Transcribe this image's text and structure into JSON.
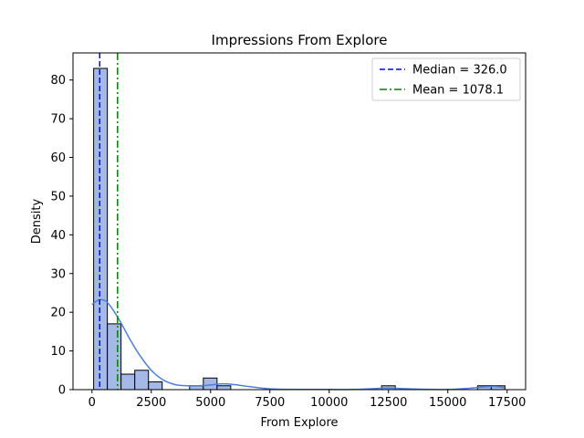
{
  "chart_data": {
    "type": "bar",
    "title": "Impressions From Explore",
    "xlabel": "From Explore",
    "ylabel": "Density",
    "xlim": [
      -800,
      18280
    ],
    "ylim": [
      0,
      87
    ],
    "x_ticks": [
      0,
      2500,
      5000,
      7500,
      10000,
      12500,
      15000,
      17500
    ],
    "x_tick_labels": [
      "0",
      "2500",
      "5000",
      "7500",
      "10000",
      "12500",
      "15000",
      "17500"
    ],
    "y_ticks": [
      0,
      10,
      20,
      30,
      40,
      50,
      60,
      70,
      80
    ],
    "y_tick_labels": [
      "0",
      "10",
      "20",
      "30",
      "40",
      "50",
      "60",
      "70",
      "80"
    ],
    "grid": false,
    "bin_start": 70,
    "bin_width": 578,
    "bin_counts": [
      83,
      17,
      4,
      5,
      2,
      0,
      0,
      1,
      3,
      1,
      0,
      0,
      0,
      0,
      0,
      0,
      0,
      0,
      0,
      0,
      0,
      1,
      0,
      0,
      0,
      0,
      0,
      0,
      1,
      1
    ],
    "kde": {
      "x": [
        0,
        300,
        600,
        900,
        1200,
        1600,
        2000,
        2500,
        3000,
        3500,
        4000,
        4500,
        5000,
        5500,
        6000,
        6500,
        7000,
        7500,
        8000,
        9000,
        10000,
        11000,
        12000,
        12500,
        13000,
        14000,
        15000,
        16000,
        16500,
        17000,
        17400
      ],
      "y": [
        22,
        23.2,
        22.8,
        20.5,
        17.5,
        13,
        9,
        5,
        2.5,
        1.3,
        1,
        1,
        1.2,
        1.5,
        1.3,
        0.9,
        0.5,
        0.2,
        0.1,
        0.05,
        0.05,
        0.05,
        0.3,
        0.4,
        0.3,
        0.1,
        0.05,
        0.4,
        0.7,
        0.8,
        0.5
      ]
    },
    "lines": [
      {
        "name": "Median = 326.0",
        "x": 326.0,
        "color": "#0000ff",
        "style": "dashed"
      },
      {
        "name": "Mean = 1078.1",
        "x": 1078.1,
        "color": "#008000",
        "style": "dashdot"
      }
    ],
    "legend_position": "top-right",
    "bar_color": "#a5b9e6",
    "kde_color": "#4a7fd4"
  }
}
